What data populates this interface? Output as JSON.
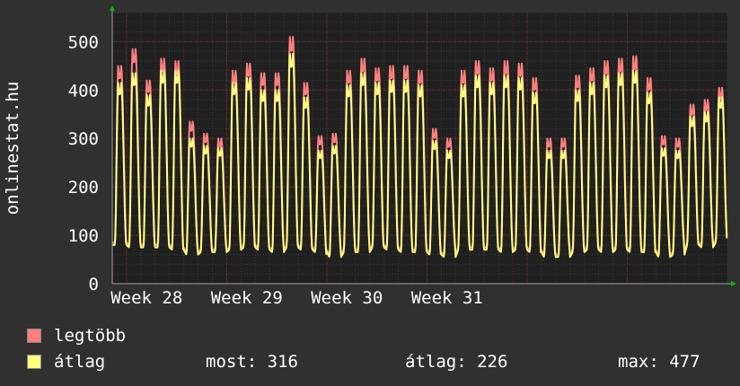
{
  "chart_data": {
    "type": "line",
    "ylabel": "onlinestat.hu",
    "ylim": [
      0,
      560
    ],
    "yticks": [
      0,
      100,
      200,
      300,
      400,
      500
    ],
    "xticks": [
      "Week 28",
      "Week 29",
      "Week 30",
      "Week 31"
    ],
    "grid": true,
    "legend_position": "bottom",
    "series": [
      {
        "name": "legtöbb",
        "color": "#ff7f7f",
        "daily_peaks": [
          450,
          485,
          420,
          465,
          460,
          335,
          310,
          300,
          440,
          455,
          435,
          435,
          510,
          415,
          305,
          310,
          440,
          465,
          445,
          450,
          450,
          440,
          320,
          300,
          440,
          460,
          445,
          460,
          455,
          425,
          300,
          300,
          430,
          445,
          460,
          465,
          470,
          425,
          305,
          300,
          370,
          380,
          405
        ],
        "daily_lows": [
          85,
          80,
          80,
          80,
          75,
          65,
          70,
          70,
          75,
          80,
          75,
          70,
          80,
          75,
          70,
          60,
          70,
          70,
          80,
          75,
          70,
          70,
          65,
          60,
          75,
          75,
          75,
          70,
          75,
          70,
          60,
          60,
          70,
          75,
          70,
          75,
          70,
          70,
          60,
          65,
          85,
          80,
          90
        ]
      },
      {
        "name": "átlag",
        "color": "#ffff7f",
        "daily_peaks": [
          415,
          435,
          390,
          440,
          440,
          300,
          285,
          280,
          415,
          425,
          400,
          400,
          475,
          385,
          275,
          285,
          410,
          435,
          415,
          420,
          420,
          410,
          295,
          275,
          410,
          430,
          415,
          430,
          425,
          395,
          275,
          275,
          400,
          415,
          430,
          435,
          440,
          395,
          280,
          275,
          345,
          355,
          385
        ],
        "daily_lows": [
          80,
          75,
          75,
          75,
          70,
          60,
          65,
          65,
          70,
          75,
          70,
          65,
          75,
          70,
          65,
          55,
          65,
          65,
          75,
          70,
          65,
          65,
          60,
          55,
          70,
          70,
          70,
          65,
          70,
          65,
          55,
          55,
          65,
          70,
          65,
          70,
          65,
          65,
          55,
          60,
          80,
          75,
          85
        ]
      }
    ]
  },
  "legend": {
    "max_label": "legtöbb",
    "avg_label": "átlag",
    "now_text": "most: 316",
    "avg_text": "átlag: 226",
    "max_text": "max: 477"
  }
}
